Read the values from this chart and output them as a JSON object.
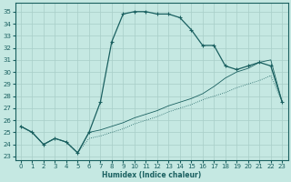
{
  "xlabel": "Humidex (Indice chaleur)",
  "bg_color": "#c5e8e2",
  "grid_color": "#a8cec8",
  "line_color": "#1a6060",
  "xlim": [
    -0.5,
    23.5
  ],
  "ylim": [
    22.7,
    35.7
  ],
  "x_ticks": [
    0,
    1,
    2,
    3,
    4,
    5,
    6,
    7,
    8,
    9,
    10,
    11,
    12,
    13,
    14,
    15,
    16,
    17,
    18,
    19,
    20,
    21,
    22,
    23
  ],
  "yticks": [
    23,
    24,
    25,
    26,
    27,
    28,
    29,
    30,
    31,
    32,
    33,
    34,
    35
  ],
  "series1_x": [
    0,
    1,
    2,
    3,
    4,
    5,
    6,
    7,
    8,
    9,
    10,
    11,
    12,
    13,
    14,
    15,
    16,
    17,
    18,
    19,
    20,
    21,
    22,
    23
  ],
  "series1_y": [
    25.5,
    25.0,
    24.0,
    24.5,
    24.2,
    23.3,
    25.0,
    27.5,
    32.5,
    34.8,
    35.0,
    35.0,
    34.8,
    34.8,
    34.5,
    33.5,
    32.2,
    32.2,
    30.5,
    30.2,
    30.5,
    30.8,
    30.5,
    27.5
  ],
  "series2_x": [
    0,
    1,
    2,
    3,
    4,
    5,
    6,
    7,
    8,
    9,
    10,
    11,
    12,
    13,
    14,
    15,
    16,
    17,
    18,
    19,
    20,
    21,
    22,
    23
  ],
  "series2_y": [
    25.5,
    25.0,
    24.0,
    24.5,
    24.2,
    23.3,
    24.5,
    24.7,
    25.0,
    25.3,
    25.7,
    26.0,
    26.3,
    26.7,
    27.0,
    27.3,
    27.7,
    28.0,
    28.3,
    28.7,
    29.0,
    29.3,
    29.7,
    27.5
  ],
  "series3_x": [
    0,
    1,
    2,
    3,
    4,
    5,
    6,
    7,
    8,
    9,
    10,
    11,
    12,
    13,
    14,
    15,
    16,
    17,
    18,
    19,
    20,
    21,
    22,
    23
  ],
  "series3_y": [
    25.5,
    25.0,
    24.0,
    24.5,
    24.2,
    23.3,
    25.0,
    25.2,
    25.5,
    25.8,
    26.2,
    26.5,
    26.8,
    27.2,
    27.5,
    27.8,
    28.2,
    28.8,
    29.5,
    30.0,
    30.3,
    30.8,
    31.0,
    27.5
  ]
}
